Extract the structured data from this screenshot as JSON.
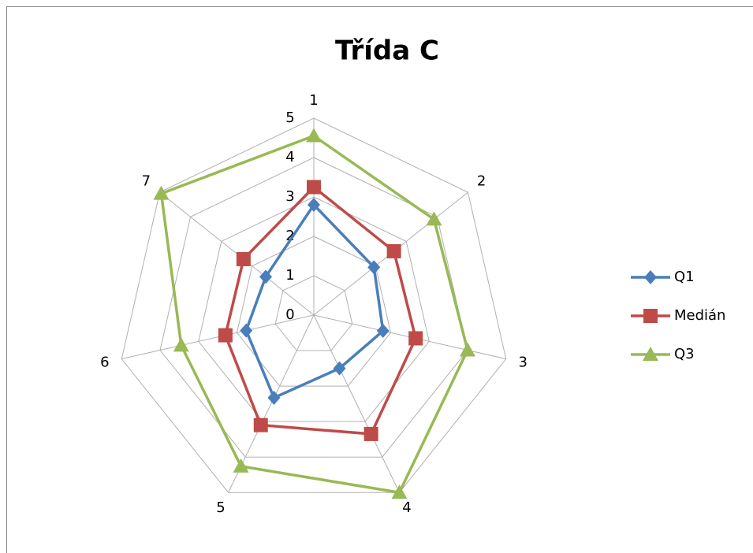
{
  "chart_data": {
    "type": "radar",
    "title": "Třída C",
    "categories": [
      "1",
      "2",
      "3",
      "4",
      "5",
      "6",
      "7"
    ],
    "series": [
      {
        "name": "Q1",
        "color": "#4a7ebb",
        "marker": "diamond",
        "values": [
          2.8,
          1.95,
          1.8,
          1.5,
          2.33,
          1.76,
          1.56
        ]
      },
      {
        "name": "Medián",
        "color": "#be4b48",
        "marker": "square",
        "values": [
          3.25,
          2.6,
          2.65,
          3.35,
          3.1,
          2.3,
          2.28
        ]
      },
      {
        "name": "Q3",
        "color": "#98b954",
        "marker": "triangle",
        "values": [
          4.55,
          3.9,
          4,
          5,
          4.26,
          3.45,
          4.95
        ]
      }
    ],
    "ylim": [
      0,
      5
    ],
    "yticks": [
      0,
      1,
      2,
      3,
      4,
      5
    ],
    "grid": true,
    "legend": "right"
  }
}
